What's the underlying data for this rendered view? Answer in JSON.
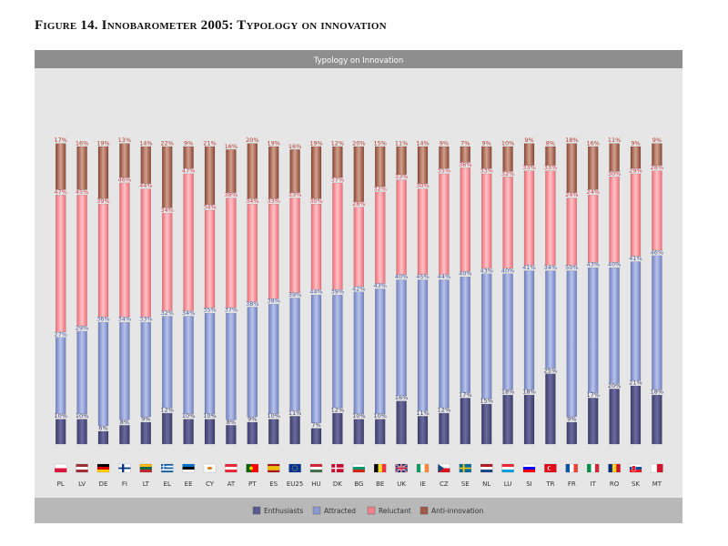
{
  "figure": {
    "title": "Figure 14. Innobarometer 2005: Typology on innovation"
  },
  "chart_data": {
    "type": "bar",
    "stacked": true,
    "percent_stacked": true,
    "title": "Typology on Innovation",
    "categories": [
      "PL",
      "LV",
      "DE",
      "FI",
      "LT",
      "EL",
      "EE",
      "CY",
      "AT",
      "PT",
      "ES",
      "EU25",
      "HU",
      "DK",
      "BG",
      "BE",
      "UK",
      "IE",
      "CZ",
      "SE",
      "NL",
      "LU",
      "SI",
      "TR",
      "FR",
      "IT",
      "RO",
      "SK",
      "MT"
    ],
    "series": [
      {
        "name": "Enthusiasts",
        "color": "#5a5a8e",
        "values": [
          10,
          10,
          6,
          8,
          9,
          12,
          10,
          10,
          8,
          9,
          10,
          11,
          7,
          12,
          10,
          10,
          16,
          11,
          12,
          17,
          15,
          18,
          18,
          25,
          9,
          17,
          20,
          21,
          18
        ]
      },
      {
        "name": "Attracted",
        "color": "#8a9ad0",
        "values": [
          27,
          29,
          36,
          34,
          33,
          32,
          34,
          35,
          37,
          38,
          38,
          39,
          44,
          39,
          42,
          43,
          40,
          45,
          44,
          40,
          43,
          40,
          41,
          34,
          50,
          43,
          40,
          41,
          46
        ]
      },
      {
        "name": "Reluctant",
        "color": "#ef7f88",
        "values": [
          47,
          45,
          39,
          46,
          44,
          34,
          47,
          34,
          38,
          34,
          33,
          33,
          30,
          37,
          28,
          32,
          33,
          30,
          35,
          36,
          33,
          32,
          33,
          33,
          24,
          24,
          30,
          29,
          28
        ]
      },
      {
        "name": "Anti-innovation",
        "color": "#a05a46",
        "values": [
          17,
          16,
          19,
          13,
          14,
          22,
          9,
          21,
          16,
          20,
          19,
          16,
          19,
          12,
          20,
          15,
          11,
          14,
          9,
          7,
          9,
          10,
          9,
          8,
          18,
          16,
          11,
          9,
          9
        ]
      }
    ],
    "value_suffix": "%",
    "label_colors": {
      "Enthusiasts": "#3c3c6e",
      "Attracted": "#4a5a9e",
      "Reluctant": "#d0404e",
      "Anti-innovation": "#b03a2e"
    },
    "flags": [
      "flag-pl",
      "flag-lv",
      "flag-de",
      "flag-fi",
      "flag-lt",
      "flag-el",
      "flag-ee",
      "flag-cy",
      "flag-at",
      "flag-pt",
      "flag-es",
      "flag-eu25",
      "flag-hu",
      "flag-dk",
      "flag-bg",
      "flag-be",
      "flag-uk",
      "flag-ie",
      "flag-cz",
      "flag-se",
      "flag-nl",
      "flag-lu",
      "flag-si",
      "flag-tr",
      "flag-fr",
      "flag-it",
      "flag-ro",
      "flag-sk",
      "flag-mt"
    ],
    "legend_position": "bottom",
    "legend": [
      "Enthusiasts",
      "Attracted",
      "Reluctant",
      "Anti-innovation"
    ],
    "grid": false
  }
}
